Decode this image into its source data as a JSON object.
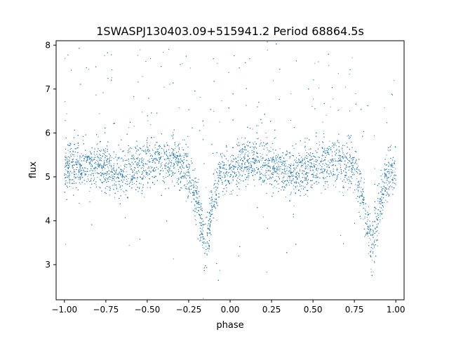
{
  "chart_data": {
    "type": "scatter",
    "title": "1SWASPJ130403.09+515941.2 Period 68864.5s",
    "xlabel": "phase",
    "ylabel": "flux",
    "xlim": [
      -1.05,
      1.05
    ],
    "ylim": [
      2.2,
      8.1
    ],
    "xticks": [
      -1.0,
      -0.75,
      -0.5,
      -0.25,
      0.0,
      0.25,
      0.5,
      0.75,
      1.0
    ],
    "xtick_labels": [
      "−1.00",
      "−0.75",
      "−0.50",
      "−0.25",
      "0.00",
      "0.25",
      "0.50",
      "0.75",
      "1.00"
    ],
    "yticks": [
      3,
      4,
      5,
      6,
      7,
      8
    ],
    "ytick_labels": [
      "3",
      "4",
      "5",
      "6",
      "7",
      "8"
    ],
    "grid": false,
    "legend": "none",
    "marker_color": "#1f77b4",
    "series": [
      {
        "profile": {
          "phase": [
            -1.0,
            -0.9,
            -0.8,
            -0.7,
            -0.6,
            -0.5,
            -0.4,
            -0.3,
            -0.25,
            -0.2,
            -0.17,
            -0.15,
            -0.13,
            -0.1,
            -0.05,
            0.0,
            0.05,
            0.1,
            0.2,
            0.3,
            0.4,
            0.5,
            0.6,
            0.7,
            0.75,
            0.8,
            0.83,
            0.85,
            0.87,
            0.9,
            0.95,
            1.0
          ],
          "flux": [
            5.2,
            5.25,
            5.3,
            5.05,
            5.15,
            5.3,
            5.35,
            5.25,
            5.1,
            4.4,
            3.8,
            3.4,
            3.7,
            4.6,
            5.1,
            5.2,
            5.3,
            5.35,
            5.3,
            5.2,
            5.05,
            5.25,
            5.35,
            5.25,
            5.2,
            4.5,
            3.9,
            3.4,
            3.6,
            4.4,
            5.0,
            5.15
          ]
        },
        "scatter_sigma": 0.28,
        "n_points": 9000
      }
    ]
  }
}
